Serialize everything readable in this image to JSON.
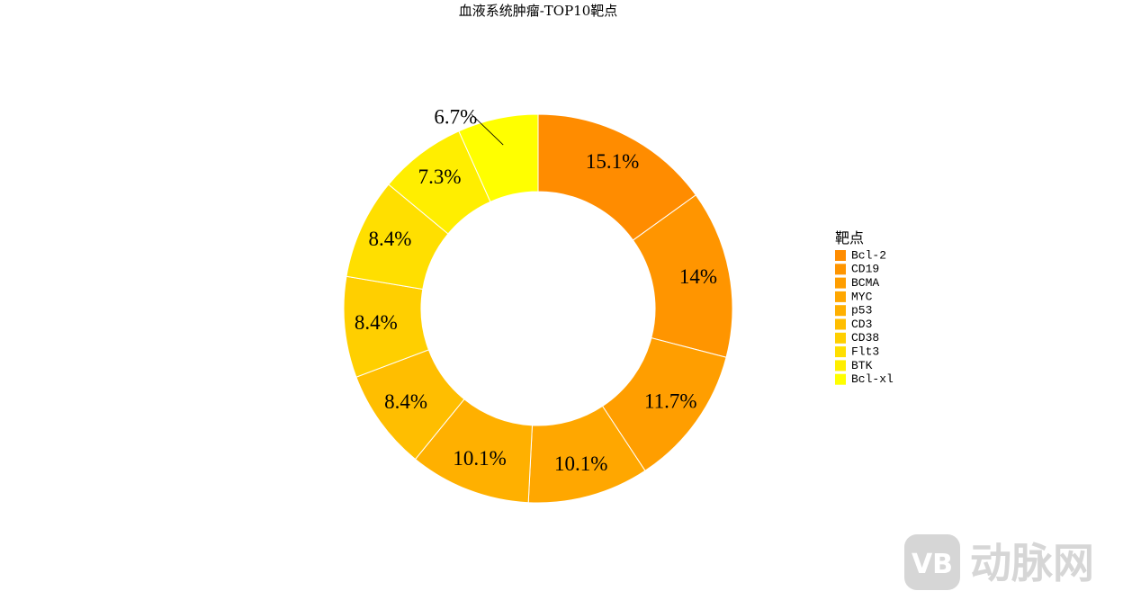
{
  "chart_data": {
    "type": "donut",
    "title": "血液系统肿瘤-TOP10靶点",
    "legend_title": "靶点",
    "legend_position": "right",
    "categories": [
      "Bcl-2",
      "CD19",
      "BCMA",
      "MYC",
      "p53",
      "CD3",
      "CD38",
      "Flt3",
      "BTK",
      "Bcl-xl"
    ],
    "values": [
      15.1,
      14,
      11.7,
      10.1,
      10.1,
      8.4,
      8.4,
      8.4,
      7.3,
      6.7
    ],
    "value_labels": [
      "15.1%",
      "14%",
      "11.7%",
      "10.1%",
      "10.1%",
      "8.4%",
      "8.4%",
      "8.4%",
      "7.3%",
      "6.7%"
    ],
    "colors": [
      "#FF8C00",
      "#FF9500",
      "#FF9E00",
      "#FFA700",
      "#FFB000",
      "#FFBE00",
      "#FFCF00",
      "#FFDF00",
      "#FFEE00",
      "#FFFF00"
    ]
  },
  "watermark": {
    "logo": "VB",
    "text": "动脉网"
  }
}
